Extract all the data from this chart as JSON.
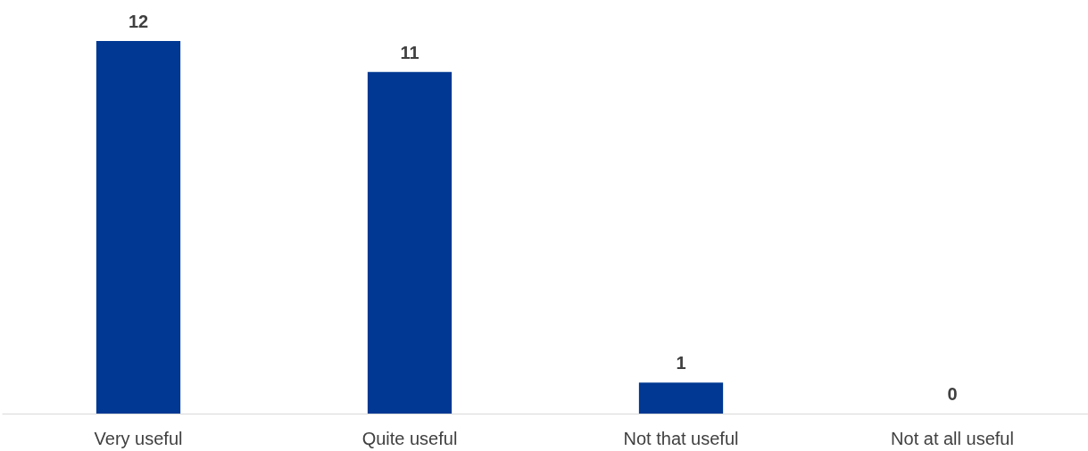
{
  "chart_data": {
    "type": "bar",
    "categories": [
      "Very useful",
      "Quite useful",
      "Not that useful",
      "Not at all useful"
    ],
    "values": [
      12,
      11,
      1,
      0
    ],
    "color": "#003893",
    "data_labels": true
  }
}
